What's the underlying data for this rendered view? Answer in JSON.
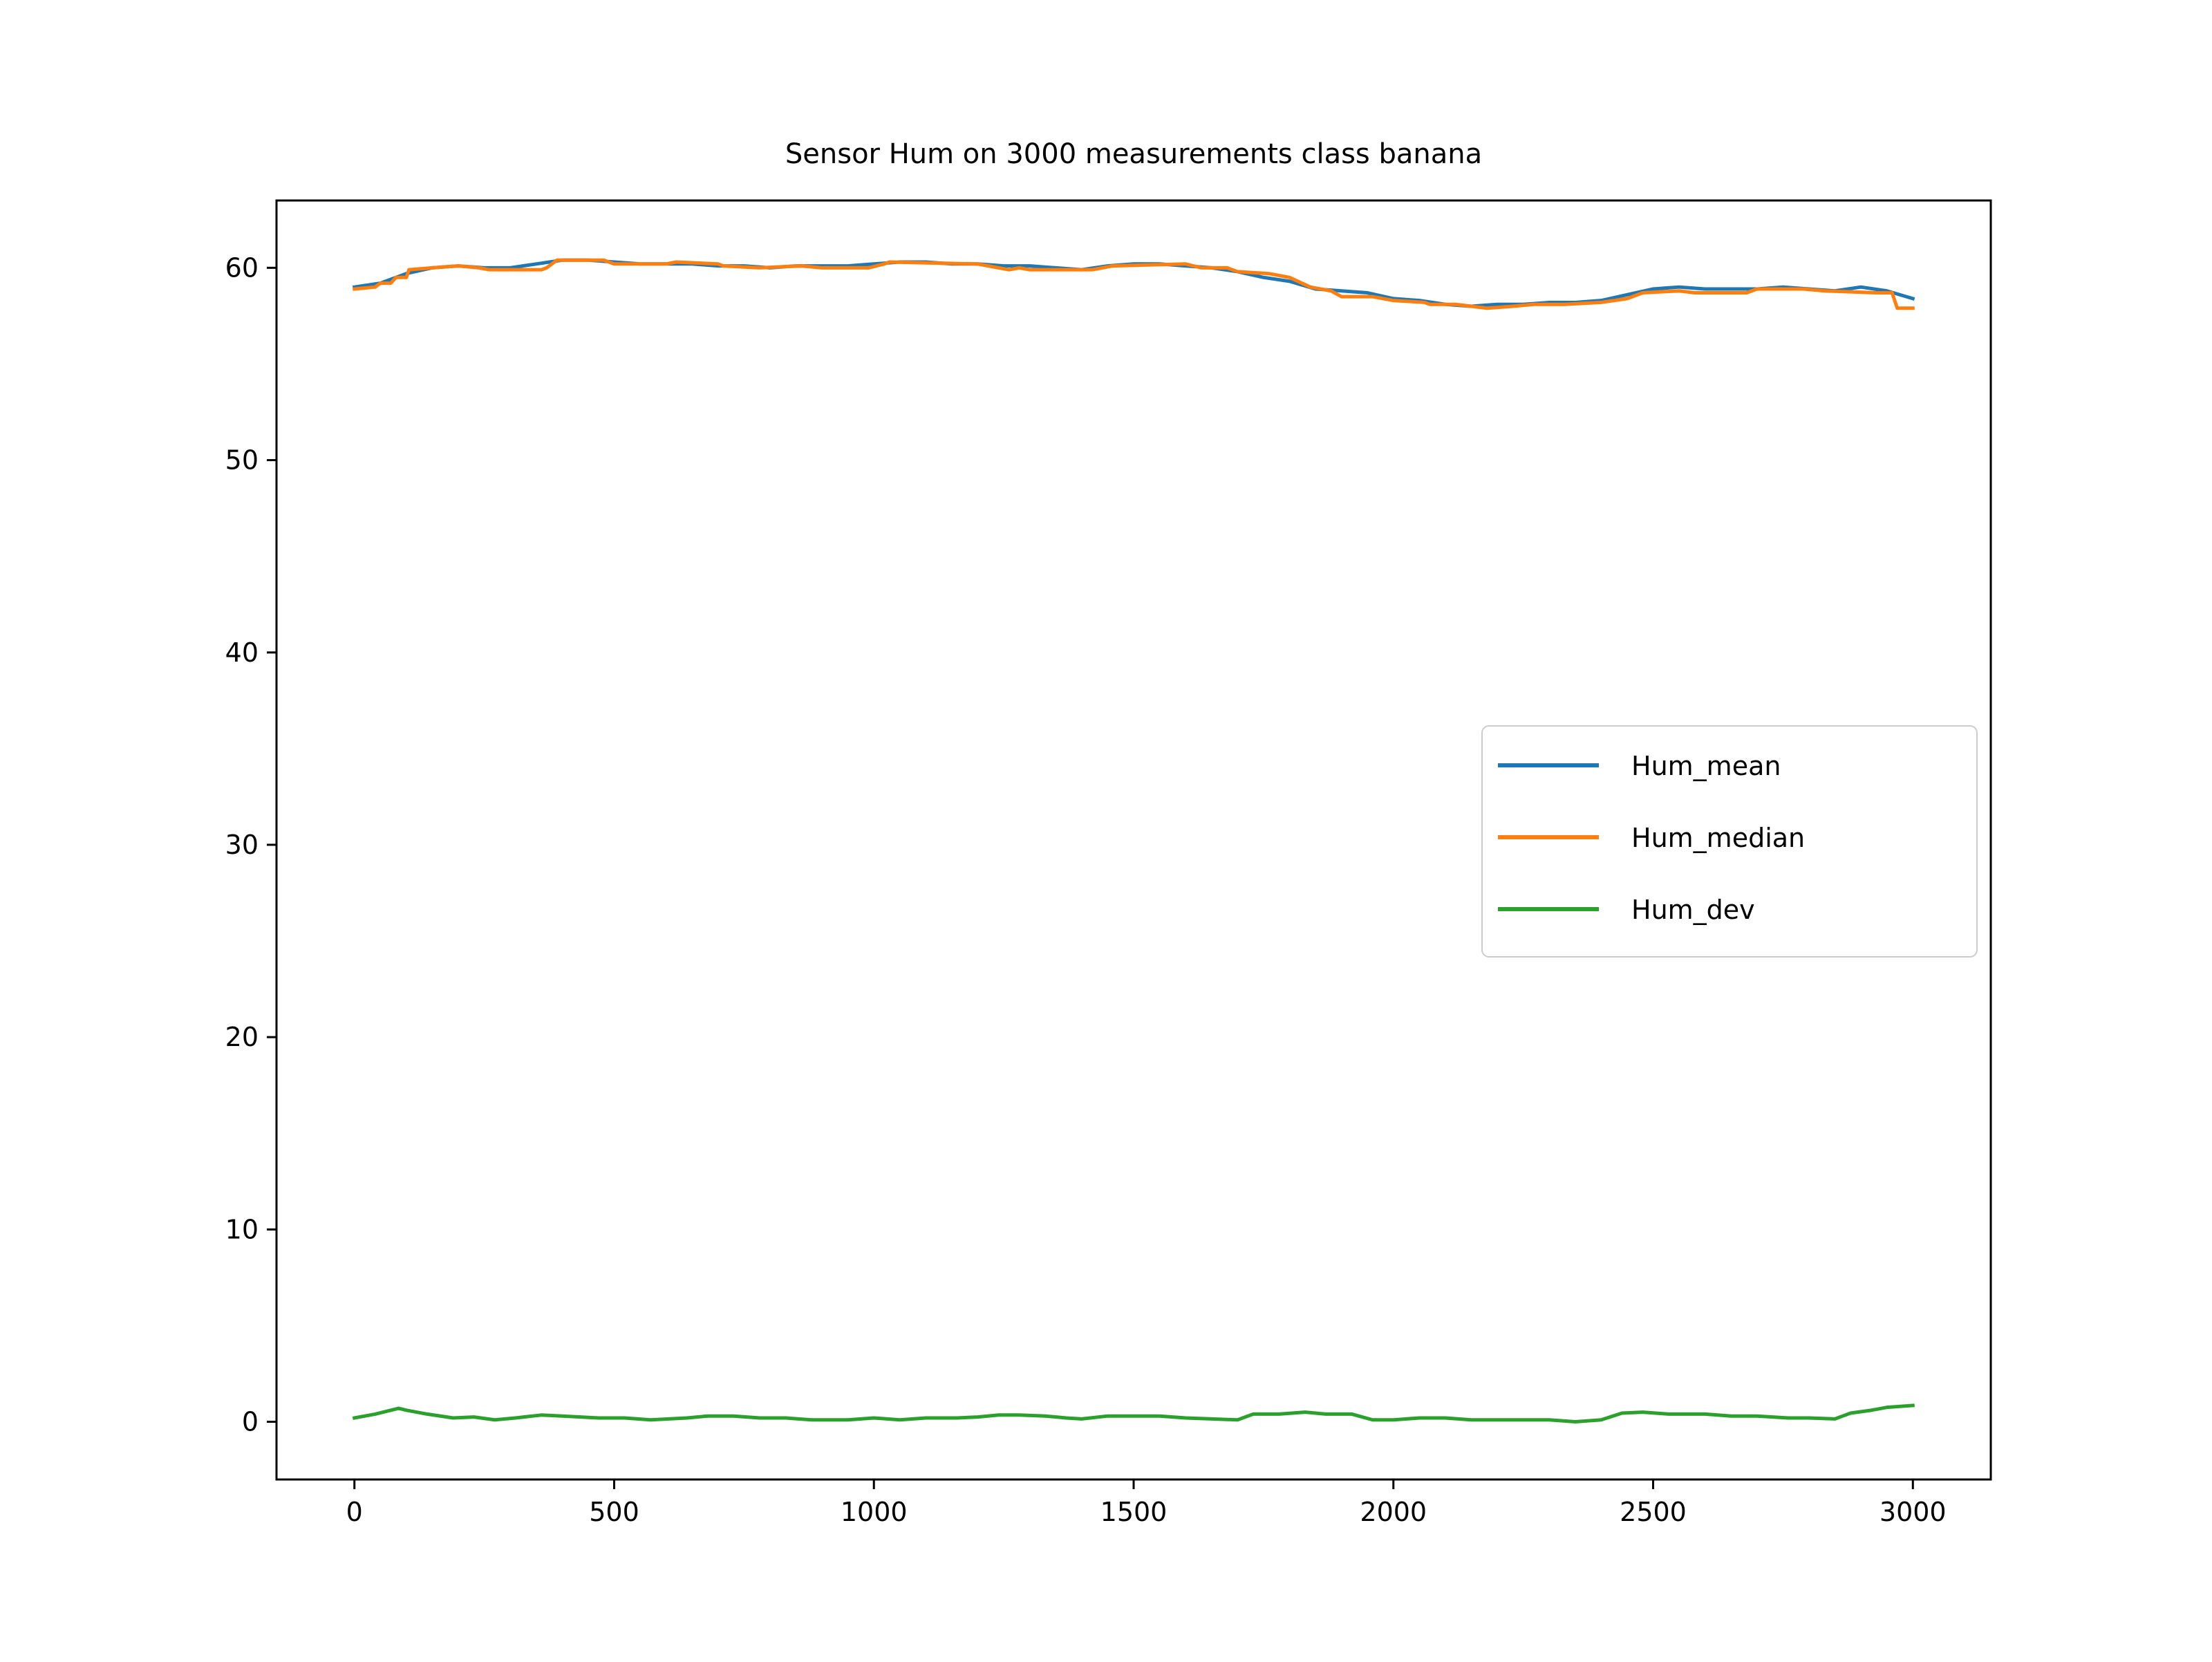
{
  "chart_data": {
    "type": "line",
    "title": "Sensor Hum on 3000 measurements class banana",
    "xlabel": "",
    "ylabel": "",
    "xlim": [
      -150,
      3150
    ],
    "ylim": [
      -3,
      63.5
    ],
    "x_ticks": [
      0,
      500,
      1000,
      1500,
      2000,
      2500,
      3000
    ],
    "y_ticks": [
      0,
      10,
      20,
      30,
      40,
      50,
      60
    ],
    "x_tick_labels": [
      "0",
      "500",
      "1000",
      "1500",
      "2000",
      "2500",
      "3000"
    ],
    "y_tick_labels": [
      "0",
      "10",
      "20",
      "30",
      "40",
      "50",
      "60"
    ],
    "grid": false,
    "legend": {
      "position": "center-right"
    },
    "series": [
      {
        "name": "Hum_mean",
        "color": "#1f77b4",
        "points": [
          [
            0,
            59.0
          ],
          [
            50,
            59.2
          ],
          [
            100,
            59.7
          ],
          [
            150,
            60.0
          ],
          [
            200,
            60.1
          ],
          [
            250,
            60.0
          ],
          [
            300,
            60.0
          ],
          [
            350,
            60.2
          ],
          [
            400,
            60.4
          ],
          [
            450,
            60.4
          ],
          [
            500,
            60.3
          ],
          [
            550,
            60.2
          ],
          [
            600,
            60.2
          ],
          [
            650,
            60.2
          ],
          [
            700,
            60.1
          ],
          [
            750,
            60.1
          ],
          [
            800,
            60.0
          ],
          [
            850,
            60.1
          ],
          [
            900,
            60.1
          ],
          [
            950,
            60.1
          ],
          [
            1000,
            60.2
          ],
          [
            1050,
            60.3
          ],
          [
            1100,
            60.3
          ],
          [
            1150,
            60.2
          ],
          [
            1200,
            60.2
          ],
          [
            1250,
            60.1
          ],
          [
            1300,
            60.1
          ],
          [
            1350,
            60.0
          ],
          [
            1400,
            59.9
          ],
          [
            1450,
            60.1
          ],
          [
            1500,
            60.2
          ],
          [
            1550,
            60.2
          ],
          [
            1600,
            60.1
          ],
          [
            1650,
            60.0
          ],
          [
            1700,
            59.8
          ],
          [
            1750,
            59.5
          ],
          [
            1800,
            59.3
          ],
          [
            1850,
            58.9
          ],
          [
            1900,
            58.8
          ],
          [
            1950,
            58.7
          ],
          [
            2000,
            58.4
          ],
          [
            2050,
            58.3
          ],
          [
            2100,
            58.1
          ],
          [
            2150,
            58.0
          ],
          [
            2200,
            58.1
          ],
          [
            2250,
            58.1
          ],
          [
            2300,
            58.2
          ],
          [
            2350,
            58.2
          ],
          [
            2400,
            58.3
          ],
          [
            2450,
            58.6
          ],
          [
            2500,
            58.9
          ],
          [
            2550,
            59.0
          ],
          [
            2600,
            58.9
          ],
          [
            2650,
            58.9
          ],
          [
            2700,
            58.9
          ],
          [
            2750,
            59.0
          ],
          [
            2800,
            58.9
          ],
          [
            2850,
            58.8
          ],
          [
            2900,
            59.0
          ],
          [
            2950,
            58.8
          ],
          [
            3000,
            58.4
          ]
        ]
      },
      {
        "name": "Hum_median",
        "color": "#ff7f0e",
        "points": [
          [
            0,
            58.9
          ],
          [
            40,
            59.0
          ],
          [
            50,
            59.2
          ],
          [
            70,
            59.2
          ],
          [
            80,
            59.5
          ],
          [
            100,
            59.5
          ],
          [
            105,
            59.9
          ],
          [
            150,
            60.0
          ],
          [
            200,
            60.1
          ],
          [
            240,
            60.0
          ],
          [
            260,
            59.9
          ],
          [
            300,
            59.9
          ],
          [
            360,
            59.9
          ],
          [
            370,
            60.0
          ],
          [
            390,
            60.4
          ],
          [
            480,
            60.4
          ],
          [
            500,
            60.2
          ],
          [
            600,
            60.2
          ],
          [
            620,
            60.3
          ],
          [
            700,
            60.2
          ],
          [
            710,
            60.1
          ],
          [
            780,
            60.0
          ],
          [
            860,
            60.1
          ],
          [
            900,
            60.0
          ],
          [
            990,
            60.0
          ],
          [
            1020,
            60.2
          ],
          [
            1030,
            60.3
          ],
          [
            1200,
            60.2
          ],
          [
            1240,
            60.0
          ],
          [
            1260,
            59.9
          ],
          [
            1280,
            60.0
          ],
          [
            1300,
            59.9
          ],
          [
            1420,
            59.9
          ],
          [
            1460,
            60.1
          ],
          [
            1600,
            60.2
          ],
          [
            1630,
            60.0
          ],
          [
            1680,
            60.0
          ],
          [
            1700,
            59.8
          ],
          [
            1760,
            59.7
          ],
          [
            1800,
            59.5
          ],
          [
            1840,
            59.0
          ],
          [
            1880,
            58.8
          ],
          [
            1900,
            58.5
          ],
          [
            1960,
            58.5
          ],
          [
            2000,
            58.3
          ],
          [
            2060,
            58.2
          ],
          [
            2070,
            58.1
          ],
          [
            2120,
            58.1
          ],
          [
            2180,
            57.9
          ],
          [
            2230,
            58.0
          ],
          [
            2270,
            58.1
          ],
          [
            2330,
            58.1
          ],
          [
            2400,
            58.2
          ],
          [
            2450,
            58.4
          ],
          [
            2480,
            58.7
          ],
          [
            2550,
            58.8
          ],
          [
            2580,
            58.7
          ],
          [
            2680,
            58.7
          ],
          [
            2700,
            58.9
          ],
          [
            2790,
            58.9
          ],
          [
            2830,
            58.8
          ],
          [
            2930,
            58.7
          ],
          [
            2960,
            58.7
          ],
          [
            2970,
            57.9
          ],
          [
            3000,
            57.9
          ]
        ]
      },
      {
        "name": "Hum_dev",
        "color": "#2ca02c",
        "points": [
          [
            0,
            0.2
          ],
          [
            40,
            0.4
          ],
          [
            85,
            0.7
          ],
          [
            100,
            0.6
          ],
          [
            140,
            0.4
          ],
          [
            190,
            0.2
          ],
          [
            230,
            0.25
          ],
          [
            270,
            0.1
          ],
          [
            310,
            0.2
          ],
          [
            360,
            0.35
          ],
          [
            400,
            0.3
          ],
          [
            470,
            0.2
          ],
          [
            520,
            0.2
          ],
          [
            570,
            0.1
          ],
          [
            640,
            0.2
          ],
          [
            680,
            0.3
          ],
          [
            730,
            0.3
          ],
          [
            780,
            0.2
          ],
          [
            830,
            0.2
          ],
          [
            880,
            0.1
          ],
          [
            950,
            0.1
          ],
          [
            1000,
            0.2
          ],
          [
            1050,
            0.1
          ],
          [
            1100,
            0.2
          ],
          [
            1160,
            0.2
          ],
          [
            1200,
            0.25
          ],
          [
            1240,
            0.35
          ],
          [
            1280,
            0.35
          ],
          [
            1330,
            0.3
          ],
          [
            1370,
            0.2
          ],
          [
            1400,
            0.15
          ],
          [
            1450,
            0.3
          ],
          [
            1500,
            0.3
          ],
          [
            1550,
            0.3
          ],
          [
            1600,
            0.2
          ],
          [
            1650,
            0.15
          ],
          [
            1700,
            0.1
          ],
          [
            1730,
            0.4
          ],
          [
            1780,
            0.4
          ],
          [
            1830,
            0.5
          ],
          [
            1870,
            0.4
          ],
          [
            1920,
            0.4
          ],
          [
            1960,
            0.1
          ],
          [
            2000,
            0.1
          ],
          [
            2050,
            0.2
          ],
          [
            2100,
            0.2
          ],
          [
            2150,
            0.1
          ],
          [
            2200,
            0.1
          ],
          [
            2250,
            0.1
          ],
          [
            2300,
            0.1
          ],
          [
            2350,
            0.0
          ],
          [
            2400,
            0.1
          ],
          [
            2440,
            0.45
          ],
          [
            2480,
            0.5
          ],
          [
            2530,
            0.4
          ],
          [
            2600,
            0.4
          ],
          [
            2650,
            0.3
          ],
          [
            2700,
            0.3
          ],
          [
            2760,
            0.2
          ],
          [
            2800,
            0.2
          ],
          [
            2850,
            0.15
          ],
          [
            2880,
            0.45
          ],
          [
            2920,
            0.6
          ],
          [
            2950,
            0.75
          ],
          [
            3000,
            0.85
          ]
        ]
      }
    ]
  }
}
